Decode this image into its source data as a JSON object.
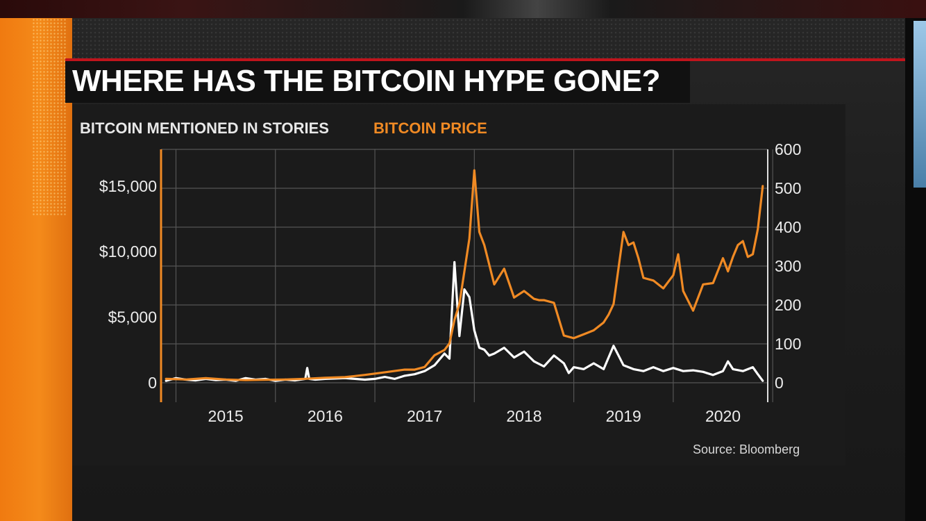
{
  "headline": "WHERE HAS THE BITCOIN HYPE GONE?",
  "source": "Source: Bloomberg",
  "colors": {
    "price": "#f08a24",
    "stories": "#ffffff",
    "accent_red": "#c0141c",
    "grid": "#555555"
  },
  "chart_data": {
    "type": "line",
    "title": "",
    "series": [
      {
        "name": "BITCOIN MENTIONED IN STORIES",
        "axis": "right",
        "color": "#ffffff",
        "x": [
          2014.4,
          2014.5,
          2014.6,
          2014.7,
          2014.8,
          2014.9,
          2015.0,
          2015.1,
          2015.2,
          2015.3,
          2015.4,
          2015.5,
          2015.6,
          2015.7,
          2015.8,
          2015.82,
          2015.84,
          2015.9,
          2016.0,
          2016.2,
          2016.4,
          2016.5,
          2016.6,
          2016.7,
          2016.8,
          2016.9,
          2017.0,
          2017.1,
          2017.2,
          2017.25,
          2017.3,
          2017.35,
          2017.4,
          2017.45,
          2017.5,
          2017.55,
          2017.6,
          2017.65,
          2017.7,
          2017.8,
          2017.9,
          2018.0,
          2018.1,
          2018.2,
          2018.3,
          2018.4,
          2018.45,
          2018.5,
          2018.6,
          2018.7,
          2018.8,
          2018.9,
          2019.0,
          2019.1,
          2019.2,
          2019.3,
          2019.4,
          2019.5,
          2019.6,
          2019.7,
          2019.8,
          2019.9,
          2020.0,
          2020.05,
          2020.1,
          2020.2,
          2020.3,
          2020.35,
          2020.4
        ],
        "values": [
          5,
          12,
          8,
          6,
          10,
          7,
          8,
          5,
          12,
          8,
          10,
          5,
          8,
          6,
          10,
          38,
          10,
          8,
          10,
          12,
          8,
          10,
          15,
          10,
          18,
          22,
          30,
          45,
          75,
          62,
          310,
          120,
          240,
          220,
          135,
          90,
          85,
          70,
          75,
          90,
          65,
          80,
          55,
          42,
          70,
          50,
          25,
          40,
          35,
          50,
          35,
          95,
          45,
          35,
          30,
          40,
          30,
          38,
          30,
          32,
          28,
          20,
          30,
          55,
          35,
          30,
          40,
          22,
          5
        ]
      },
      {
        "name": "BITCOIN PRICE",
        "axis": "left",
        "color": "#f08a24",
        "x": [
          2014.4,
          2014.6,
          2014.8,
          2015.0,
          2015.2,
          2015.4,
          2015.6,
          2015.8,
          2016.0,
          2016.2,
          2016.4,
          2016.6,
          2016.8,
          2016.9,
          2017.0,
          2017.1,
          2017.2,
          2017.25,
          2017.3,
          2017.35,
          2017.4,
          2017.45,
          2017.5,
          2017.55,
          2017.6,
          2017.7,
          2017.8,
          2017.9,
          2018.0,
          2018.1,
          2018.15,
          2018.2,
          2018.3,
          2018.4,
          2018.5,
          2018.6,
          2018.7,
          2018.8,
          2018.85,
          2018.9,
          2019.0,
          2019.05,
          2019.1,
          2019.15,
          2019.2,
          2019.3,
          2019.4,
          2019.5,
          2019.55,
          2019.6,
          2019.7,
          2019.8,
          2019.9,
          2020.0,
          2020.05,
          2020.1,
          2020.15,
          2020.2,
          2020.25,
          2020.3,
          2020.35,
          2020.4
        ],
        "values": [
          300,
          250,
          350,
          250,
          200,
          230,
          250,
          300,
          380,
          430,
          600,
          800,
          1000,
          1000,
          1200,
          2100,
          2500,
          3000,
          4800,
          6000,
          8500,
          11000,
          16200,
          11500,
          10500,
          7500,
          8700,
          6500,
          7000,
          6400,
          6300,
          6300,
          6100,
          3600,
          3400,
          3700,
          4000,
          4600,
          5200,
          6000,
          11500,
          10500,
          10700,
          9500,
          8000,
          7800,
          7200,
          8200,
          9800,
          7000,
          5500,
          7500,
          7600,
          9500,
          8500,
          9600,
          10500,
          10800,
          9600,
          9800,
          11700,
          15000
        ]
      }
    ],
    "x_ticks": [
      {
        "value": 2015,
        "label": "2015"
      },
      {
        "value": 2016,
        "label": "2016"
      },
      {
        "value": 2017,
        "label": "2017"
      },
      {
        "value": 2018,
        "label": "2018"
      },
      {
        "value": 2019,
        "label": "2019"
      },
      {
        "value": 2020,
        "label": "2020"
      }
    ],
    "x_gridlines": [
      2014.5,
      2015.5,
      2016.5,
      2017.5,
      2018.5,
      2019.5,
      2020.5
    ],
    "xlim": [
      2014.35,
      2020.45
    ],
    "y_left": {
      "min": 0,
      "max": 17800,
      "ticks": [
        0,
        5000,
        10000,
        15000
      ],
      "tick_labels": [
        "0",
        "$5,000",
        "$10,000",
        "$15,000"
      ]
    },
    "y_right": {
      "min": 0,
      "max": 600,
      "ticks": [
        0,
        100,
        200,
        300,
        400,
        500,
        600
      ],
      "tick_labels": [
        "0",
        "100",
        "200",
        "300",
        "400",
        "500",
        "600"
      ]
    },
    "grid": true
  }
}
